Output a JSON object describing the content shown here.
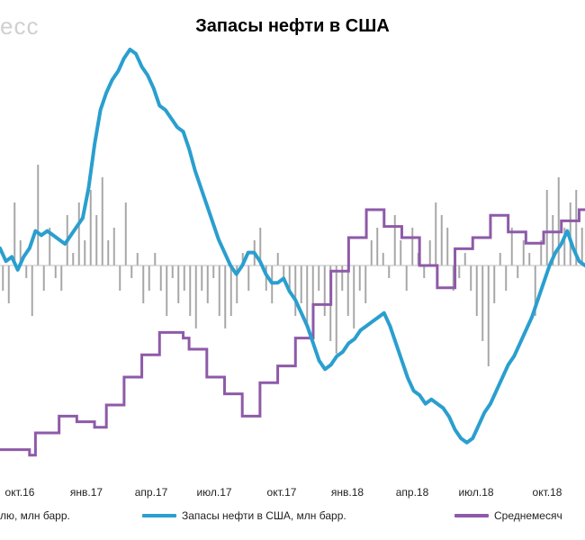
{
  "watermark": "есс",
  "chart_data": {
    "type": "line",
    "title": "Запасы нефти в США",
    "x_ticks": [
      "окт.16",
      "янв.17",
      "апр.17",
      "июл.17",
      "окт.17",
      "янв.18",
      "апр.18",
      "июл.18",
      "окт.18"
    ],
    "colors": {
      "inventory": "#2a9fcf",
      "monthly_avg": "#8e5aa8",
      "weekly_bars": "#a6a6a6"
    },
    "grid": false,
    "series": [
      {
        "name": "лю, млн барр.",
        "type": "bar",
        "role": "weekly_change",
        "values": [
          -2,
          -3,
          5,
          2,
          -1,
          -4,
          8,
          -2,
          3,
          -1,
          -2,
          4,
          1,
          5,
          2,
          6,
          4,
          7,
          2,
          3,
          -2,
          5,
          -1,
          1,
          -3,
          -2,
          1,
          -2,
          -4,
          -1,
          -3,
          -2,
          -4,
          -5,
          -2,
          -3,
          -1,
          -4,
          -5,
          -4,
          -3,
          1,
          -2,
          2,
          3,
          -2,
          -3,
          1,
          -1,
          -2,
          -4,
          -3,
          -5,
          -3,
          -2,
          -4,
          -6,
          -7,
          -2,
          -4,
          -5,
          -2,
          -3,
          2,
          3,
          1,
          -1,
          4,
          2,
          -2,
          3,
          1,
          -1,
          2,
          5,
          4,
          3,
          -2,
          -1,
          1,
          -2,
          -4,
          -6,
          -8,
          -3,
          1,
          -2,
          3,
          -1,
          2,
          1,
          -4,
          2,
          6,
          4,
          7,
          3,
          5,
          6,
          3
        ]
      },
      {
        "name": "Запасы нефти в США, млн барр.",
        "type": "line",
        "role": "inventory",
        "values": [
          488,
          485,
          486,
          483,
          486,
          488,
          492,
          491,
          492,
          491,
          490,
          489,
          491,
          493,
          495,
          502,
          512,
          520,
          524,
          527,
          529,
          532,
          534,
          533,
          530,
          528,
          525,
          521,
          520,
          518,
          516,
          515,
          511,
          506,
          502,
          498,
          494,
          490,
          487,
          484,
          482,
          484,
          487,
          487,
          485,
          482,
          480,
          480,
          481,
          478,
          476,
          473,
          470,
          466,
          462,
          460,
          461,
          463,
          464,
          466,
          467,
          469,
          470,
          471,
          472,
          473,
          470,
          466,
          462,
          458,
          455,
          454,
          452,
          453,
          452,
          451,
          449,
          446,
          444,
          443,
          444,
          447,
          450,
          452,
          455,
          458,
          461,
          463,
          466,
          469,
          472,
          476,
          480,
          484,
          487,
          489,
          492,
          488,
          485,
          484
        ]
      },
      {
        "name": "Среднемесяч",
        "type": "line",
        "role": "monthly_avg",
        "values": [
          433,
          433,
          433,
          433,
          433,
          432,
          436,
          436,
          436,
          436,
          439,
          439,
          439,
          438,
          438,
          438,
          437,
          437,
          441,
          441,
          441,
          446,
          446,
          446,
          450,
          450,
          450,
          454,
          454,
          454,
          454,
          453,
          451,
          451,
          451,
          446,
          446,
          446,
          443,
          443,
          443,
          439,
          439,
          439,
          445,
          445,
          445,
          448,
          448,
          448,
          453,
          453,
          453,
          459,
          459,
          459,
          465,
          465,
          465,
          471,
          471,
          471,
          476,
          476,
          476,
          473,
          473,
          473,
          471,
          471,
          471,
          466,
          466,
          466,
          462,
          462,
          462,
          469,
          469,
          469,
          471,
          471,
          471,
          475,
          475,
          475,
          472,
          472,
          472,
          470,
          470,
          470,
          472,
          472,
          472,
          474,
          474,
          474,
          476,
          476
        ]
      }
    ]
  }
}
